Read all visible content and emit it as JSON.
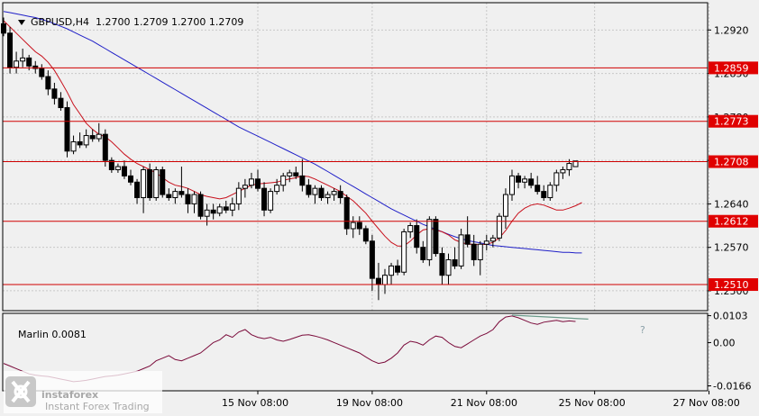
{
  "header": {
    "symbol_title": "GBPUSD,H4  1.2700 1.2709 1.2700 1.2709"
  },
  "indicator": {
    "title": "Marlin 0.0081"
  },
  "logo": {
    "brand": "instaforex",
    "tagline": "Instant Forex Trading"
  },
  "annotation": {
    "question_mark": "?"
  },
  "colors": {
    "background": "#f0f0f0",
    "grid": "#c8c8c8",
    "level_line": "#d00000",
    "label_bg": "#e00000",
    "ma_fast": "#c8101c",
    "ma_slow": "#2020c8",
    "marlin": "#7a0a3a",
    "divergence": "#6a9a8a"
  },
  "chart_data": {
    "type": "candlestick",
    "ylim": [
      1.2468,
      1.2964
    ],
    "price_ticks": [
      "1.2920",
      "1.2850",
      "1.2780",
      "1.2710",
      "1.2640",
      "1.2570",
      "1.2500"
    ],
    "level_lines": [
      {
        "value": 1.2859,
        "label": "1.2859"
      },
      {
        "value": 1.2773,
        "label": "1.2773"
      },
      {
        "value": 1.2708,
        "label": "1.2708"
      },
      {
        "value": 1.2612,
        "label": "1.2612"
      },
      {
        "value": 1.251,
        "label": "1.2510"
      }
    ],
    "candles": [
      [
        1.293,
        1.294,
        1.291,
        1.2915
      ],
      [
        1.2915,
        1.2925,
        1.285,
        1.286
      ],
      [
        1.286,
        1.2885,
        1.285,
        1.287
      ],
      [
        1.287,
        1.289,
        1.286,
        1.2875
      ],
      [
        1.2875,
        1.288,
        1.2855,
        1.2862
      ],
      [
        1.2862,
        1.287,
        1.285,
        1.2858
      ],
      [
        1.2858,
        1.2865,
        1.284,
        1.2845
      ],
      [
        1.2845,
        1.2855,
        1.2815,
        1.2825
      ],
      [
        1.2825,
        1.2835,
        1.28,
        1.281
      ],
      [
        1.281,
        1.282,
        1.279,
        1.2795
      ],
      [
        1.2795,
        1.2805,
        1.2715,
        1.2725
      ],
      [
        1.2725,
        1.275,
        1.272,
        1.274
      ],
      [
        1.274,
        1.2755,
        1.273,
        1.2735
      ],
      [
        1.2735,
        1.276,
        1.273,
        1.275
      ],
      [
        1.275,
        1.276,
        1.274,
        1.2745
      ],
      [
        1.2745,
        1.277,
        1.274,
        1.2752
      ],
      [
        1.2752,
        1.276,
        1.27,
        1.271
      ],
      [
        1.271,
        1.2715,
        1.269,
        1.2695
      ],
      [
        1.2695,
        1.2705,
        1.269,
        1.27
      ],
      [
        1.27,
        1.271,
        1.268,
        1.2685
      ],
      [
        1.2685,
        1.2695,
        1.267,
        1.2675
      ],
      [
        1.2675,
        1.268,
        1.264,
        1.265
      ],
      [
        1.265,
        1.27,
        1.2625,
        1.2695
      ],
      [
        1.2695,
        1.2705,
        1.2645,
        1.265
      ],
      [
        1.265,
        1.27,
        1.2645,
        1.2695
      ],
      [
        1.2695,
        1.27,
        1.265,
        1.2655
      ],
      [
        1.2655,
        1.2665,
        1.2645,
        1.265
      ],
      [
        1.265,
        1.2665,
        1.264,
        1.266
      ],
      [
        1.266,
        1.27,
        1.265,
        1.2655
      ],
      [
        1.2655,
        1.2665,
        1.2625,
        1.264
      ],
      [
        1.264,
        1.266,
        1.2625,
        1.2655
      ],
      [
        1.2655,
        1.266,
        1.2615,
        1.262
      ],
      [
        1.262,
        1.264,
        1.2605,
        1.263
      ],
      [
        1.263,
        1.264,
        1.2615,
        1.2625
      ],
      [
        1.2625,
        1.264,
        1.262,
        1.2635
      ],
      [
        1.2635,
        1.2645,
        1.2625,
        1.263
      ],
      [
        1.263,
        1.265,
        1.262,
        1.264
      ],
      [
        1.264,
        1.2675,
        1.263,
        1.2665
      ],
      [
        1.2665,
        1.268,
        1.265,
        1.267
      ],
      [
        1.267,
        1.269,
        1.2665,
        1.268
      ],
      [
        1.268,
        1.2695,
        1.266,
        1.2665
      ],
      [
        1.2665,
        1.2675,
        1.262,
        1.263
      ],
      [
        1.263,
        1.2665,
        1.2625,
        1.266
      ],
      [
        1.266,
        1.268,
        1.2655,
        1.267
      ],
      [
        1.267,
        1.269,
        1.266,
        1.2685
      ],
      [
        1.2685,
        1.2695,
        1.2675,
        1.269
      ],
      [
        1.269,
        1.27,
        1.268,
        1.2685
      ],
      [
        1.2685,
        1.2712,
        1.266,
        1.267
      ],
      [
        1.267,
        1.268,
        1.265,
        1.2655
      ],
      [
        1.2655,
        1.267,
        1.264,
        1.2665
      ],
      [
        1.2665,
        1.267,
        1.2645,
        1.265
      ],
      [
        1.265,
        1.266,
        1.264,
        1.2655
      ],
      [
        1.2655,
        1.2665,
        1.2645,
        1.266
      ],
      [
        1.266,
        1.267,
        1.264,
        1.265
      ],
      [
        1.265,
        1.2655,
        1.259,
        1.26
      ],
      [
        1.26,
        1.262,
        1.2585,
        1.261
      ],
      [
        1.261,
        1.262,
        1.259,
        1.26
      ],
      [
        1.26,
        1.2605,
        1.2575,
        1.258
      ],
      [
        1.258,
        1.259,
        1.25,
        1.252
      ],
      [
        1.252,
        1.2545,
        1.2485,
        1.251
      ],
      [
        1.251,
        1.2535,
        1.2495,
        1.2525
      ],
      [
        1.2525,
        1.2545,
        1.251,
        1.254
      ],
      [
        1.254,
        1.255,
        1.2525,
        1.253
      ],
      [
        1.253,
        1.26,
        1.2525,
        1.2595
      ],
      [
        1.2595,
        1.261,
        1.2585,
        1.2605
      ],
      [
        1.2605,
        1.2615,
        1.256,
        1.257
      ],
      [
        1.257,
        1.258,
        1.2545,
        1.255
      ],
      [
        1.255,
        1.262,
        1.254,
        1.2615
      ],
      [
        1.2615,
        1.262,
        1.2555,
        1.256
      ],
      [
        1.256,
        1.257,
        1.251,
        1.2525
      ],
      [
        1.2525,
        1.256,
        1.251,
        1.255
      ],
      [
        1.255,
        1.257,
        1.2535,
        1.254
      ],
      [
        1.254,
        1.26,
        1.2535,
        1.259
      ],
      [
        1.259,
        1.262,
        1.257,
        1.2575
      ],
      [
        1.2575,
        1.259,
        1.254,
        1.255
      ],
      [
        1.255,
        1.258,
        1.2525,
        1.2575
      ],
      [
        1.2575,
        1.259,
        1.2565,
        1.258
      ],
      [
        1.258,
        1.259,
        1.257,
        1.2585
      ],
      [
        1.2585,
        1.2625,
        1.258,
        1.262
      ],
      [
        1.262,
        1.2665,
        1.26,
        1.2655
      ],
      [
        1.2655,
        1.2695,
        1.2645,
        1.2685
      ],
      [
        1.2685,
        1.269,
        1.2665,
        1.2675
      ],
      [
        1.2675,
        1.2685,
        1.2665,
        1.268
      ],
      [
        1.268,
        1.269,
        1.2665,
        1.267
      ],
      [
        1.267,
        1.2685,
        1.2655,
        1.266
      ],
      [
        1.266,
        1.267,
        1.2645,
        1.265
      ],
      [
        1.265,
        1.2675,
        1.2645,
        1.267
      ],
      [
        1.267,
        1.2695,
        1.266,
        1.269
      ],
      [
        1.269,
        1.27,
        1.268,
        1.2695
      ],
      [
        1.2695,
        1.2712,
        1.2685,
        1.2705
      ],
      [
        1.27,
        1.2709,
        1.27,
        1.2709
      ]
    ],
    "ma_fast": [
      1.2935,
      1.2925,
      1.2915,
      1.2905,
      1.2895,
      1.2885,
      1.2878,
      1.2868,
      1.2855,
      1.2838,
      1.282,
      1.28,
      1.2785,
      1.277,
      1.276,
      1.2752,
      1.2748,
      1.274,
      1.273,
      1.272,
      1.2712,
      1.2705,
      1.27,
      1.2695,
      1.269,
      1.2682,
      1.2675,
      1.267,
      1.2668,
      1.2665,
      1.266,
      1.2655,
      1.2652,
      1.265,
      1.2648,
      1.265,
      1.2655,
      1.266,
      1.2665,
      1.267,
      1.2672,
      1.2673,
      1.2674,
      1.2675,
      1.2678,
      1.268,
      1.2682,
      1.2685,
      1.2684,
      1.268,
      1.2675,
      1.267,
      1.2665,
      1.266,
      1.2652,
      1.2645,
      1.2635,
      1.2625,
      1.2612,
      1.26,
      1.2588,
      1.2578,
      1.2572,
      1.2572,
      1.258,
      1.259,
      1.2598,
      1.26,
      1.2598,
      1.2595,
      1.259,
      1.2582,
      1.2578,
      1.2575,
      1.2575,
      1.2574,
      1.2575,
      1.2578,
      1.2585,
      1.2597,
      1.2612,
      1.2625,
      1.2633,
      1.2638,
      1.264,
      1.2638,
      1.2634,
      1.263,
      1.263,
      1.2633,
      1.2637,
      1.2642
    ],
    "ma_slow": [
      1.295,
      1.2948,
      1.2946,
      1.2944,
      1.2942,
      1.294,
      1.2937,
      1.2934,
      1.293,
      1.2926,
      1.2922,
      1.2917,
      1.2912,
      1.2907,
      1.2902,
      1.2896,
      1.289,
      1.2884,
      1.2878,
      1.2872,
      1.2866,
      1.286,
      1.2854,
      1.2848,
      1.2842,
      1.2836,
      1.283,
      1.2824,
      1.2818,
      1.2812,
      1.2806,
      1.28,
      1.2794,
      1.2788,
      1.2782,
      1.2776,
      1.277,
      1.2764,
      1.2759,
      1.2754,
      1.2749,
      1.2744,
      1.2739,
      1.2734,
      1.2729,
      1.2724,
      1.2719,
      1.2714,
      1.2709,
      1.2704,
      1.2698,
      1.2692,
      1.2686,
      1.268,
      1.2674,
      1.2668,
      1.2662,
      1.2656,
      1.265,
      1.2644,
      1.2638,
      1.2632,
      1.2627,
      1.2622,
      1.2617,
      1.2612,
      1.2607,
      1.2603,
      1.2599,
      1.2595,
      1.2591,
      1.2587,
      1.2584,
      1.2581,
      1.2579,
      1.2577,
      1.2575,
      1.2573,
      1.2572,
      1.2571,
      1.257,
      1.2569,
      1.2568,
      1.2567,
      1.2566,
      1.2565,
      1.2564,
      1.2563,
      1.2562,
      1.2562,
      1.2561,
      1.2561
    ],
    "indicator_ylim": [
      -0.0185,
      0.0112
    ],
    "indicator_ticks": [
      {
        "value": 0.0103,
        "label": "0.0103"
      },
      {
        "value": 0.0,
        "label": "0.00"
      },
      {
        "value": -0.0166,
        "label": "-0.0166"
      }
    ],
    "marlin": [
      -0.008,
      -0.009,
      -0.01,
      -0.011,
      -0.012,
      -0.0125,
      -0.0128,
      -0.013,
      -0.0135,
      -0.014,
      -0.0145,
      -0.015,
      -0.0148,
      -0.0145,
      -0.014,
      -0.0135,
      -0.013,
      -0.0128,
      -0.0125,
      -0.012,
      -0.0115,
      -0.011,
      -0.01,
      -0.009,
      -0.007,
      -0.006,
      -0.005,
      -0.0065,
      -0.007,
      -0.006,
      -0.005,
      -0.004,
      -0.002,
      0.0,
      0.001,
      0.003,
      0.002,
      0.004,
      0.005,
      0.003,
      0.002,
      0.0015,
      0.002,
      0.001,
      0.0005,
      0.0012,
      0.002,
      0.0028,
      0.003,
      0.0025,
      0.0018,
      0.001,
      0.0,
      -0.001,
      -0.002,
      -0.003,
      -0.004,
      -0.0055,
      -0.007,
      -0.008,
      -0.0075,
      -0.006,
      -0.004,
      -0.001,
      0.0005,
      0.0,
      -0.001,
      0.001,
      0.0025,
      0.002,
      0.0,
      -0.0015,
      -0.002,
      -0.0005,
      0.001,
      0.0025,
      0.0035,
      0.005,
      0.008,
      0.0098,
      0.0102,
      0.0095,
      0.0085,
      0.0075,
      0.007,
      0.0078,
      0.0082,
      0.0085,
      0.008,
      0.0083,
      0.0081
    ],
    "divergence_line": [
      [
        80,
        0.0105
      ],
      [
        92,
        0.009
      ]
    ],
    "x_labels": [
      {
        "index": 40,
        "label": "15 Nov 08:00"
      },
      {
        "index": 58,
        "label": "19 Nov 08:00"
      },
      {
        "index": 76,
        "label": "21 Nov 08:00"
      },
      {
        "index": 93,
        "label": "25 Nov 08:00"
      },
      {
        "index": 111,
        "label": "27 Nov 08:00"
      }
    ]
  }
}
